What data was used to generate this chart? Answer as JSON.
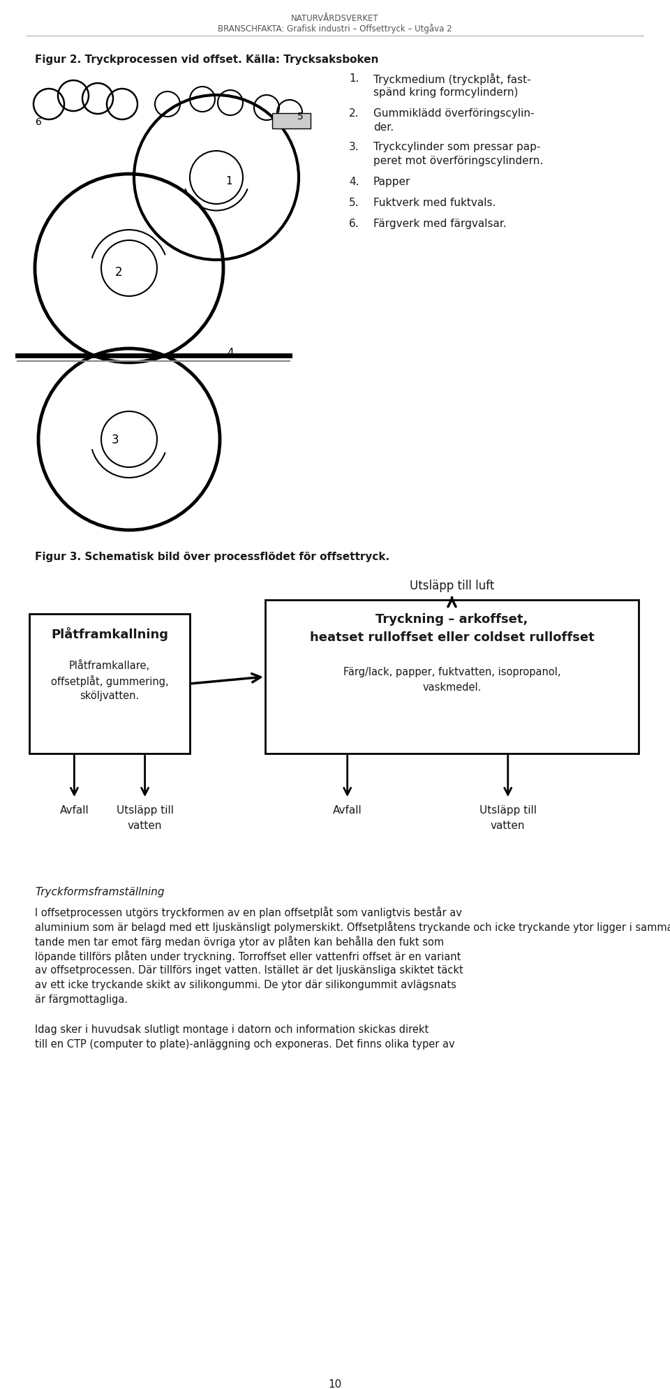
{
  "header_line1": "NATURVÅRDSVERKET",
  "header_line2": "BRANSCHFAKTA: Grafisk industri – Offsettryck – Utgåva 2",
  "fig2_caption": "Figur 2. Tryckprocessen vid offset. Källa: Trycksaksboken",
  "list_items": [
    [
      "Tryckmedium (tryckplåt, fast-",
      "spänd kring formcylindern)"
    ],
    [
      "Gummiklädd överföringscylin-",
      "der."
    ],
    [
      "Tryckcylinder som pressar pap-",
      "peret mot överföringscylindern."
    ],
    [
      "Papper"
    ],
    [
      "Fuktverk med fuktvals."
    ],
    [
      "Färgverk med färgvalsar."
    ]
  ],
  "fig3_caption": "Figur 3. Schematisk bild över processflödet för offsettryck.",
  "utsläpp_luft": "Utsläpp till luft",
  "box1_title": "Plåtframkallning",
  "box1_body_lines": [
    "Plåtframkallare,",
    "offsetplåt, gummering,",
    "sköljvatten."
  ],
  "box2_title_lines": [
    "Tryckning – arkoffset,",
    "heatset rulloffset eller coldset rulloffset"
  ],
  "box2_body_lines": [
    "Färg/lack, papper, fuktvatten, isopropanol,",
    "vaskmedel."
  ],
  "avfall1": "Avfall",
  "utsläpp_vatten1": [
    "Utsläpp till",
    "vatten"
  ],
  "avfall2": "Avfall",
  "utsläpp_vatten2": [
    "Utsläpp till",
    "vatten"
  ],
  "italic_heading": "Tryckformsframställning",
  "para1_lines": [
    "I offsetprocessen utgörs tryckformen av en plan offsetplåt som vanligtvis består av",
    "aluminium som är belagd med ett ljuskänsligt polymerskikt. Offsetplåtens tryckande och icke tryckande ytor ligger i samma nivå. Tryckande ytor är vattenborstö-",
    "tande men tar emot färg medan övriga ytor av plåten kan behålla den fukt som",
    "löpande tillförs plåten under tryckning. Torroffset eller vattenfri offset är en variant",
    "av offsetprocessen. Där tillförs inget vatten. Istället är det ljuskänsliga skiktet täckt",
    "av ett icke tryckande skikt av silikongummi. De ytor där silikongummit avlägsnats",
    "är färgmottagliga."
  ],
  "para2_lines": [
    "Idag sker i huvudsak slutligt montage i datorn och information skickas direkt",
    "till en CTP (computer to plate)-anläggning och exponeras. Det finns olika typer av"
  ],
  "page_number": "10",
  "bg_color": "#ffffff",
  "text_color": "#1a1a1a"
}
